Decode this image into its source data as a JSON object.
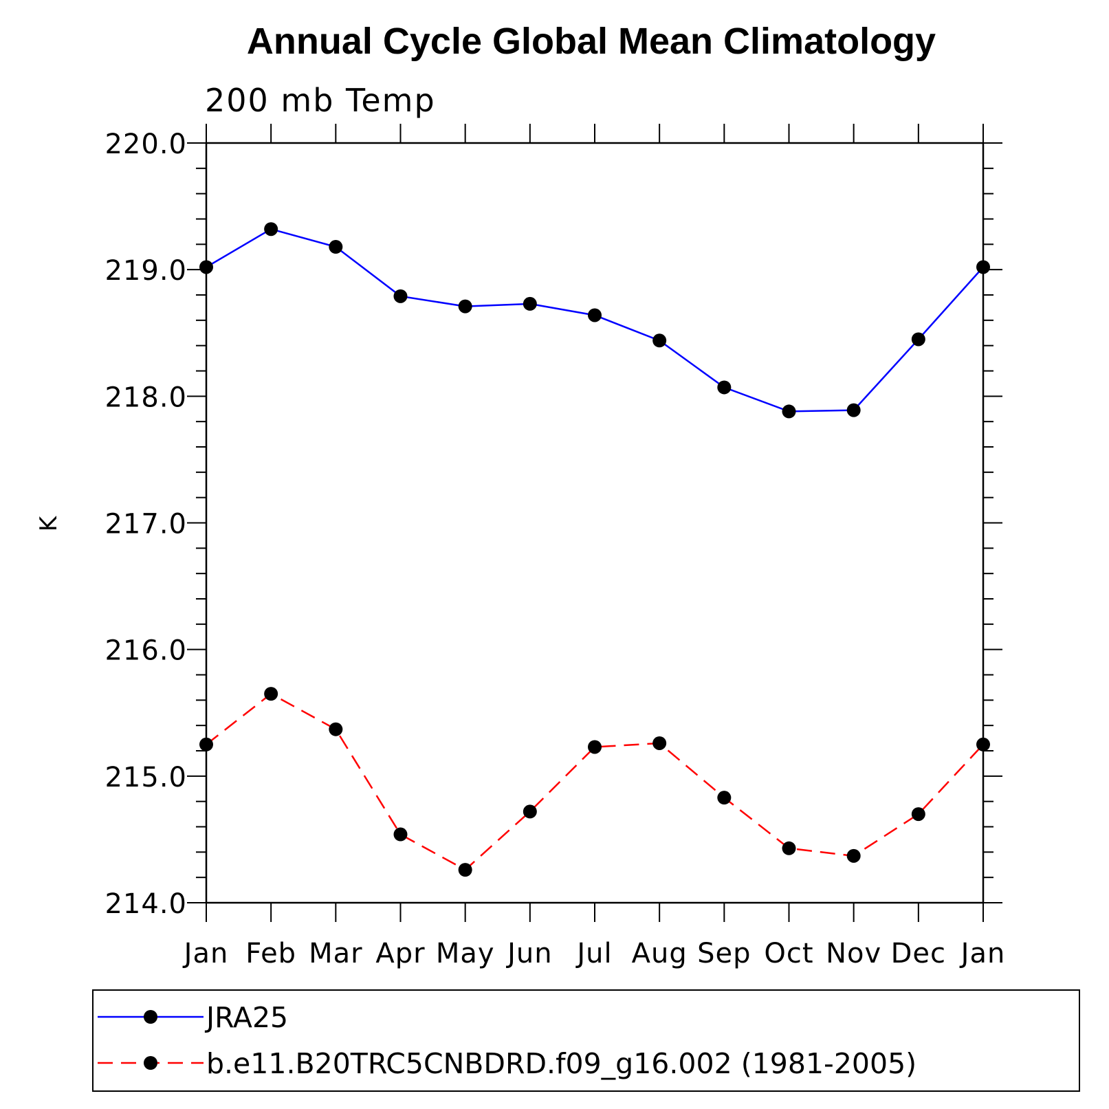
{
  "chart_data": {
    "type": "line",
    "title": "Annual Cycle Global Mean Climatology",
    "subtitle": "200 mb Temp",
    "xlabel": "",
    "ylabel": "K",
    "categories": [
      "Jan",
      "Feb",
      "Mar",
      "Apr",
      "May",
      "Jun",
      "Jul",
      "Aug",
      "Sep",
      "Oct",
      "Nov",
      "Dec",
      "Jan"
    ],
    "ylim": [
      214.0,
      220.0
    ],
    "y_ticks": [
      "214.0",
      "215.0",
      "216.0",
      "217.0",
      "218.0",
      "219.0",
      "220.0"
    ],
    "grid": false,
    "legend_position": "bottom",
    "series": [
      {
        "name": "JRA25",
        "color": "#0000ff",
        "line_style": "solid",
        "marker": "filled-circle",
        "values": [
          219.02,
          219.32,
          219.18,
          218.79,
          218.71,
          218.73,
          218.64,
          218.44,
          218.07,
          217.88,
          217.89,
          218.45,
          219.02
        ]
      },
      {
        "name": "b.e11.B20TRC5CNBDRD.f09_g16.002 (1981-2005)",
        "color": "#ff0000",
        "line_style": "dashed",
        "marker": "filled-circle",
        "values": [
          215.25,
          215.65,
          215.37,
          214.54,
          214.26,
          214.72,
          215.23,
          215.26,
          214.83,
          214.43,
          214.37,
          214.7,
          215.25
        ]
      }
    ]
  }
}
